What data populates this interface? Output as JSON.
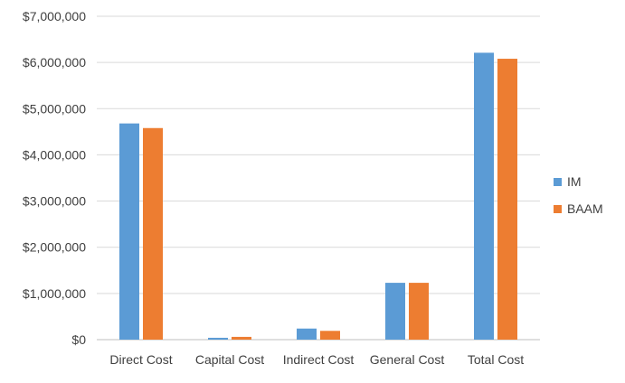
{
  "chart_data": {
    "type": "bar",
    "categories": [
      "Direct Cost",
      "Capital Cost",
      "Indirect Cost",
      "General Cost",
      "Total Cost"
    ],
    "series": [
      {
        "name": "IM",
        "color": "#5B9BD5",
        "values": [
          4680000,
          40000,
          240000,
          1230000,
          6210000
        ]
      },
      {
        "name": "BAAM",
        "color": "#ED7D31",
        "values": [
          4580000,
          60000,
          190000,
          1230000,
          6080000
        ]
      }
    ],
    "yticks": [
      "$0",
      "$1,000,000",
      "$2,000,000",
      "$3,000,000",
      "$4,000,000",
      "$5,000,000",
      "$6,000,000",
      "$7,000,000"
    ],
    "ylim": [
      0,
      7000000
    ],
    "grid": true,
    "legend_position": "right"
  }
}
